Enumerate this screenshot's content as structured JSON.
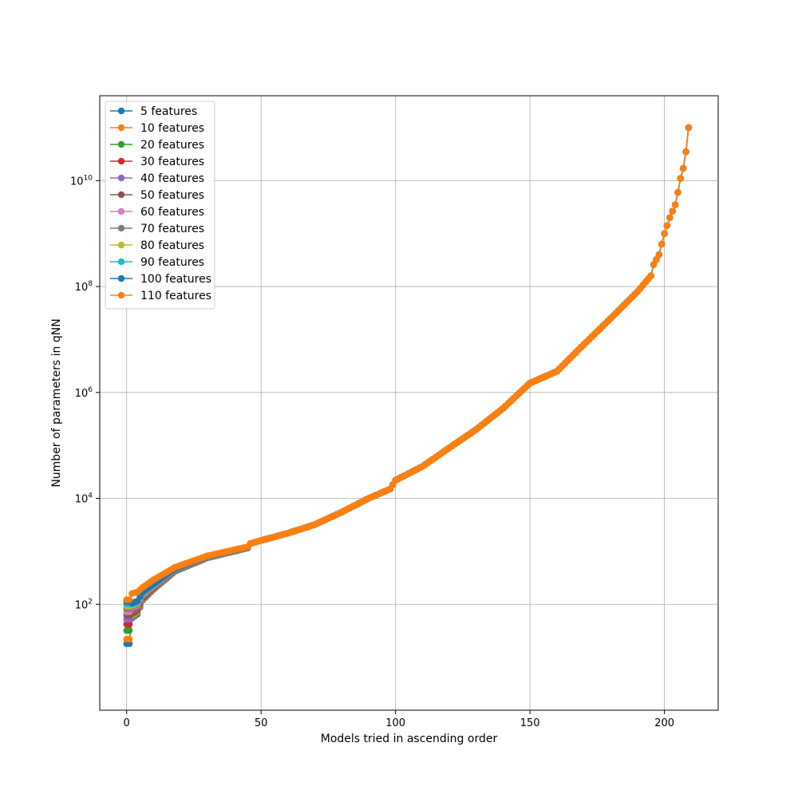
{
  "chart_data": {
    "type": "line",
    "title": "",
    "xlabel": "Models tried in ascending order",
    "ylabel": "Number of parameters in qNN",
    "yscale": "log",
    "xlim": [
      -10,
      220
    ],
    "ylim": [
      1,
      400000000000
    ],
    "x_ticks": [
      0,
      50,
      100,
      150,
      200
    ],
    "y_ticks": [
      {
        "value": 100,
        "base": "10",
        "exp": "2"
      },
      {
        "value": 10000,
        "base": "10",
        "exp": "4"
      },
      {
        "value": 1000000,
        "base": "10",
        "exp": "6"
      },
      {
        "value": 100000000,
        "base": "10",
        "exp": "8"
      },
      {
        "value": 10000000000,
        "base": "10",
        "exp": "10"
      }
    ],
    "grid": true,
    "legend_position": "top-left",
    "marker": "circle",
    "x_count": 210,
    "main_curve_anchors": [
      {
        "x": 0,
        "y": 120
      },
      {
        "x": 1,
        "y": 160
      },
      {
        "x": 5,
        "y": 200
      },
      {
        "x": 10,
        "y": 300
      },
      {
        "x": 20,
        "y": 520
      },
      {
        "x": 30,
        "y": 800
      },
      {
        "x": 40,
        "y": 1150
      },
      {
        "x": 50,
        "y": 1600
      },
      {
        "x": 60,
        "y": 2200
      },
      {
        "x": 70,
        "y": 3200
      },
      {
        "x": 80,
        "y": 5500
      },
      {
        "x": 90,
        "y": 10000
      },
      {
        "x": 98,
        "y": 15000
      },
      {
        "x": 100,
        "y": 22000
      },
      {
        "x": 110,
        "y": 40000
      },
      {
        "x": 120,
        "y": 90000
      },
      {
        "x": 130,
        "y": 200000
      },
      {
        "x": 140,
        "y": 500000
      },
      {
        "x": 150,
        "y": 1500000
      },
      {
        "x": 160,
        "y": 2500000
      },
      {
        "x": 170,
        "y": 8000000
      },
      {
        "x": 180,
        "y": 25000000
      },
      {
        "x": 190,
        "y": 80000000
      },
      {
        "x": 195,
        "y": 160000000
      },
      {
        "x": 196,
        "y": 260000000
      },
      {
        "x": 198,
        "y": 400000000
      },
      {
        "x": 200,
        "y": 1000000000
      },
      {
        "x": 202,
        "y": 2000000000
      },
      {
        "x": 204,
        "y": 3500000000
      },
      {
        "x": 205,
        "y": 6000000000
      },
      {
        "x": 206,
        "y": 11000000000
      },
      {
        "x": 207,
        "y": 17000000000
      },
      {
        "x": 208,
        "y": 35000000000
      },
      {
        "x": 209,
        "y": 100000000000
      }
    ],
    "series": [
      {
        "name": "5 features",
        "color": "#1f77b4",
        "start": [
          {
            "x": 0,
            "y": 18
          },
          {
            "x": 1,
            "y": 18
          },
          {
            "x": 2,
            "y": 55
          },
          {
            "x": 4,
            "y": 65
          },
          {
            "x": 6,
            "y": 120
          },
          {
            "x": 10,
            "y": 190
          },
          {
            "x": 18,
            "y": 420
          },
          {
            "x": 30,
            "y": 750
          },
          {
            "x": 45,
            "y": 1150
          }
        ]
      },
      {
        "name": "10 features",
        "color": "#ff7f0e",
        "start": [
          {
            "x": 0,
            "y": 22
          },
          {
            "x": 1,
            "y": 22
          },
          {
            "x": 2,
            "y": 60
          },
          {
            "x": 4,
            "y": 70
          },
          {
            "x": 6,
            "y": 125
          },
          {
            "x": 10,
            "y": 195
          },
          {
            "x": 18,
            "y": 425
          },
          {
            "x": 30,
            "y": 755
          },
          {
            "x": 45,
            "y": 1155
          }
        ]
      },
      {
        "name": "20 features",
        "color": "#2ca02c",
        "start": [
          {
            "x": 0,
            "y": 32
          },
          {
            "x": 1,
            "y": 32
          },
          {
            "x": 2,
            "y": 65
          },
          {
            "x": 4,
            "y": 75
          },
          {
            "x": 6,
            "y": 130
          },
          {
            "x": 10,
            "y": 200
          },
          {
            "x": 18,
            "y": 430
          },
          {
            "x": 30,
            "y": 760
          },
          {
            "x": 45,
            "y": 1160
          }
        ]
      },
      {
        "name": "30 features",
        "color": "#d62728",
        "start": [
          {
            "x": 0,
            "y": 42
          },
          {
            "x": 1,
            "y": 42
          },
          {
            "x": 2,
            "y": 70
          },
          {
            "x": 4,
            "y": 80
          },
          {
            "x": 6,
            "y": 135
          },
          {
            "x": 10,
            "y": 205
          },
          {
            "x": 18,
            "y": 435
          },
          {
            "x": 30,
            "y": 765
          },
          {
            "x": 45,
            "y": 1165
          }
        ]
      },
      {
        "name": "40 features",
        "color": "#9467bd",
        "start": [
          {
            "x": 0,
            "y": 52
          },
          {
            "x": 1,
            "y": 52
          },
          {
            "x": 2,
            "y": 75
          },
          {
            "x": 4,
            "y": 85
          },
          {
            "x": 6,
            "y": 140
          },
          {
            "x": 10,
            "y": 210
          },
          {
            "x": 18,
            "y": 440
          },
          {
            "x": 30,
            "y": 770
          },
          {
            "x": 45,
            "y": 1170
          }
        ]
      },
      {
        "name": "50 features",
        "color": "#8c564b",
        "start": [
          {
            "x": 0,
            "y": 62
          },
          {
            "x": 1,
            "y": 62
          },
          {
            "x": 2,
            "y": 80
          },
          {
            "x": 4,
            "y": 90
          },
          {
            "x": 6,
            "y": 145
          },
          {
            "x": 10,
            "y": 215
          },
          {
            "x": 18,
            "y": 445
          },
          {
            "x": 30,
            "y": 775
          },
          {
            "x": 45,
            "y": 1175
          }
        ]
      },
      {
        "name": "60 features",
        "color": "#e377c2",
        "start": [
          {
            "x": 0,
            "y": 72
          },
          {
            "x": 1,
            "y": 72
          },
          {
            "x": 2,
            "y": 85
          },
          {
            "x": 4,
            "y": 95
          },
          {
            "x": 6,
            "y": 150
          },
          {
            "x": 10,
            "y": 220
          },
          {
            "x": 18,
            "y": 450
          },
          {
            "x": 30,
            "y": 780
          },
          {
            "x": 45,
            "y": 1180
          }
        ]
      },
      {
        "name": "70 features",
        "color": "#7f7f7f",
        "start": [
          {
            "x": 0,
            "y": 82
          },
          {
            "x": 1,
            "y": 82
          },
          {
            "x": 2,
            "y": 90
          },
          {
            "x": 4,
            "y": 100
          },
          {
            "x": 6,
            "y": 155
          },
          {
            "x": 10,
            "y": 225
          },
          {
            "x": 18,
            "y": 455
          },
          {
            "x": 30,
            "y": 785
          },
          {
            "x": 45,
            "y": 1185
          }
        ]
      },
      {
        "name": "80 features",
        "color": "#bcbd22",
        "start": [
          {
            "x": 0,
            "y": 92
          },
          {
            "x": 1,
            "y": 92
          },
          {
            "x": 2,
            "y": 95
          },
          {
            "x": 4,
            "y": 105
          },
          {
            "x": 6,
            "y": 160
          },
          {
            "x": 10,
            "y": 230
          },
          {
            "x": 18,
            "y": 460
          },
          {
            "x": 30,
            "y": 790
          },
          {
            "x": 45,
            "y": 1190
          }
        ]
      },
      {
        "name": "90 features",
        "color": "#17becf",
        "start": [
          {
            "x": 0,
            "y": 102
          },
          {
            "x": 1,
            "y": 102
          },
          {
            "x": 2,
            "y": 100
          },
          {
            "x": 4,
            "y": 110
          },
          {
            "x": 6,
            "y": 165
          },
          {
            "x": 10,
            "y": 235
          },
          {
            "x": 18,
            "y": 465
          },
          {
            "x": 30,
            "y": 795
          },
          {
            "x": 45,
            "y": 1195
          }
        ]
      },
      {
        "name": "100 features",
        "color": "#1f77b4",
        "start": [
          {
            "x": 0,
            "y": 112
          },
          {
            "x": 1,
            "y": 112
          },
          {
            "x": 2,
            "y": 105
          },
          {
            "x": 4,
            "y": 115
          },
          {
            "x": 6,
            "y": 170
          },
          {
            "x": 10,
            "y": 240
          },
          {
            "x": 18,
            "y": 470
          },
          {
            "x": 30,
            "y": 800
          },
          {
            "x": 45,
            "y": 1200
          }
        ]
      },
      {
        "name": "110 features",
        "color": "#ff7f0e",
        "start": [
          {
            "x": 0,
            "y": 122
          },
          {
            "x": 1,
            "y": 122
          },
          {
            "x": 2,
            "y": 160
          },
          {
            "x": 4,
            "y": 170
          },
          {
            "x": 6,
            "y": 210
          },
          {
            "x": 10,
            "y": 290
          },
          {
            "x": 18,
            "y": 500
          },
          {
            "x": 30,
            "y": 820
          },
          {
            "x": 45,
            "y": 1220
          }
        ]
      }
    ]
  }
}
